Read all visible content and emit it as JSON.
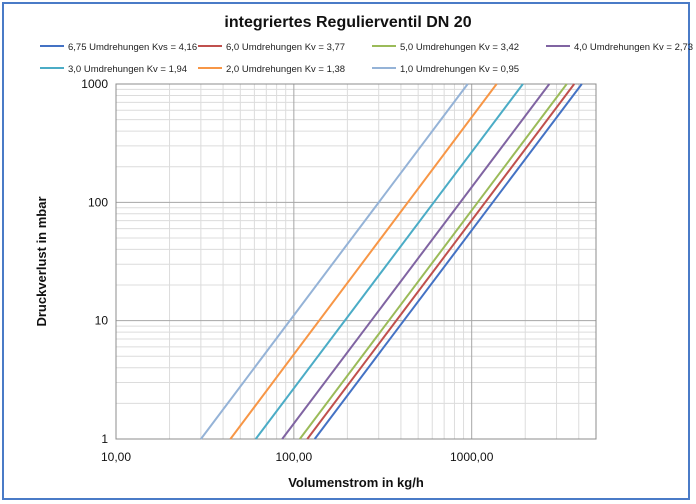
{
  "chart_data": {
    "type": "line",
    "title": "integriertes Regulierventil DN 20",
    "xlabel": "Volumenstrom in kg/h",
    "ylabel": "Druckverlust in mbar",
    "x_scale": "log",
    "y_scale": "log",
    "xlim": [
      10,
      5000
    ],
    "ylim": [
      1,
      1000
    ],
    "x_tick_labels": [
      "10,00",
      "100,00",
      "1000,00"
    ],
    "y_tick_labels": [
      "1",
      "10",
      "100",
      "1000"
    ],
    "grid": true,
    "legend_position": "top",
    "series": [
      {
        "name": "6,75 Umdrehungen Kvs = 4,16",
        "color": "#4472c4",
        "x": [
          131,
          4160
        ],
        "y": [
          1,
          1000
        ]
      },
      {
        "name": "6,0 Umdrehungen Kv = 3,77",
        "color": "#c0504d",
        "x": [
          119,
          3770
        ],
        "y": [
          1,
          1000
        ]
      },
      {
        "name": "5,0 Umdrehungen Kv = 3,42",
        "color": "#9bbb59",
        "x": [
          108,
          3420
        ],
        "y": [
          1,
          1000
        ]
      },
      {
        "name": "4,0 Umdrehungen Kv = 2,73",
        "color": "#8064a2",
        "x": [
          86,
          2730
        ],
        "y": [
          1,
          1000
        ]
      },
      {
        "name": "3,0 Umdrehungen Kv = 1,94",
        "color": "#4bacc6",
        "x": [
          61,
          1940
        ],
        "y": [
          1,
          1000
        ]
      },
      {
        "name": "2,0 Umdrehungen Kv = 1,38",
        "color": "#f79646",
        "x": [
          44,
          1380
        ],
        "y": [
          1,
          1000
        ]
      },
      {
        "name": "1,0 Umdrehungen Kv = 0,95",
        "color": "#95b3d7",
        "x": [
          30,
          950
        ],
        "y": [
          1,
          1000
        ]
      }
    ]
  }
}
